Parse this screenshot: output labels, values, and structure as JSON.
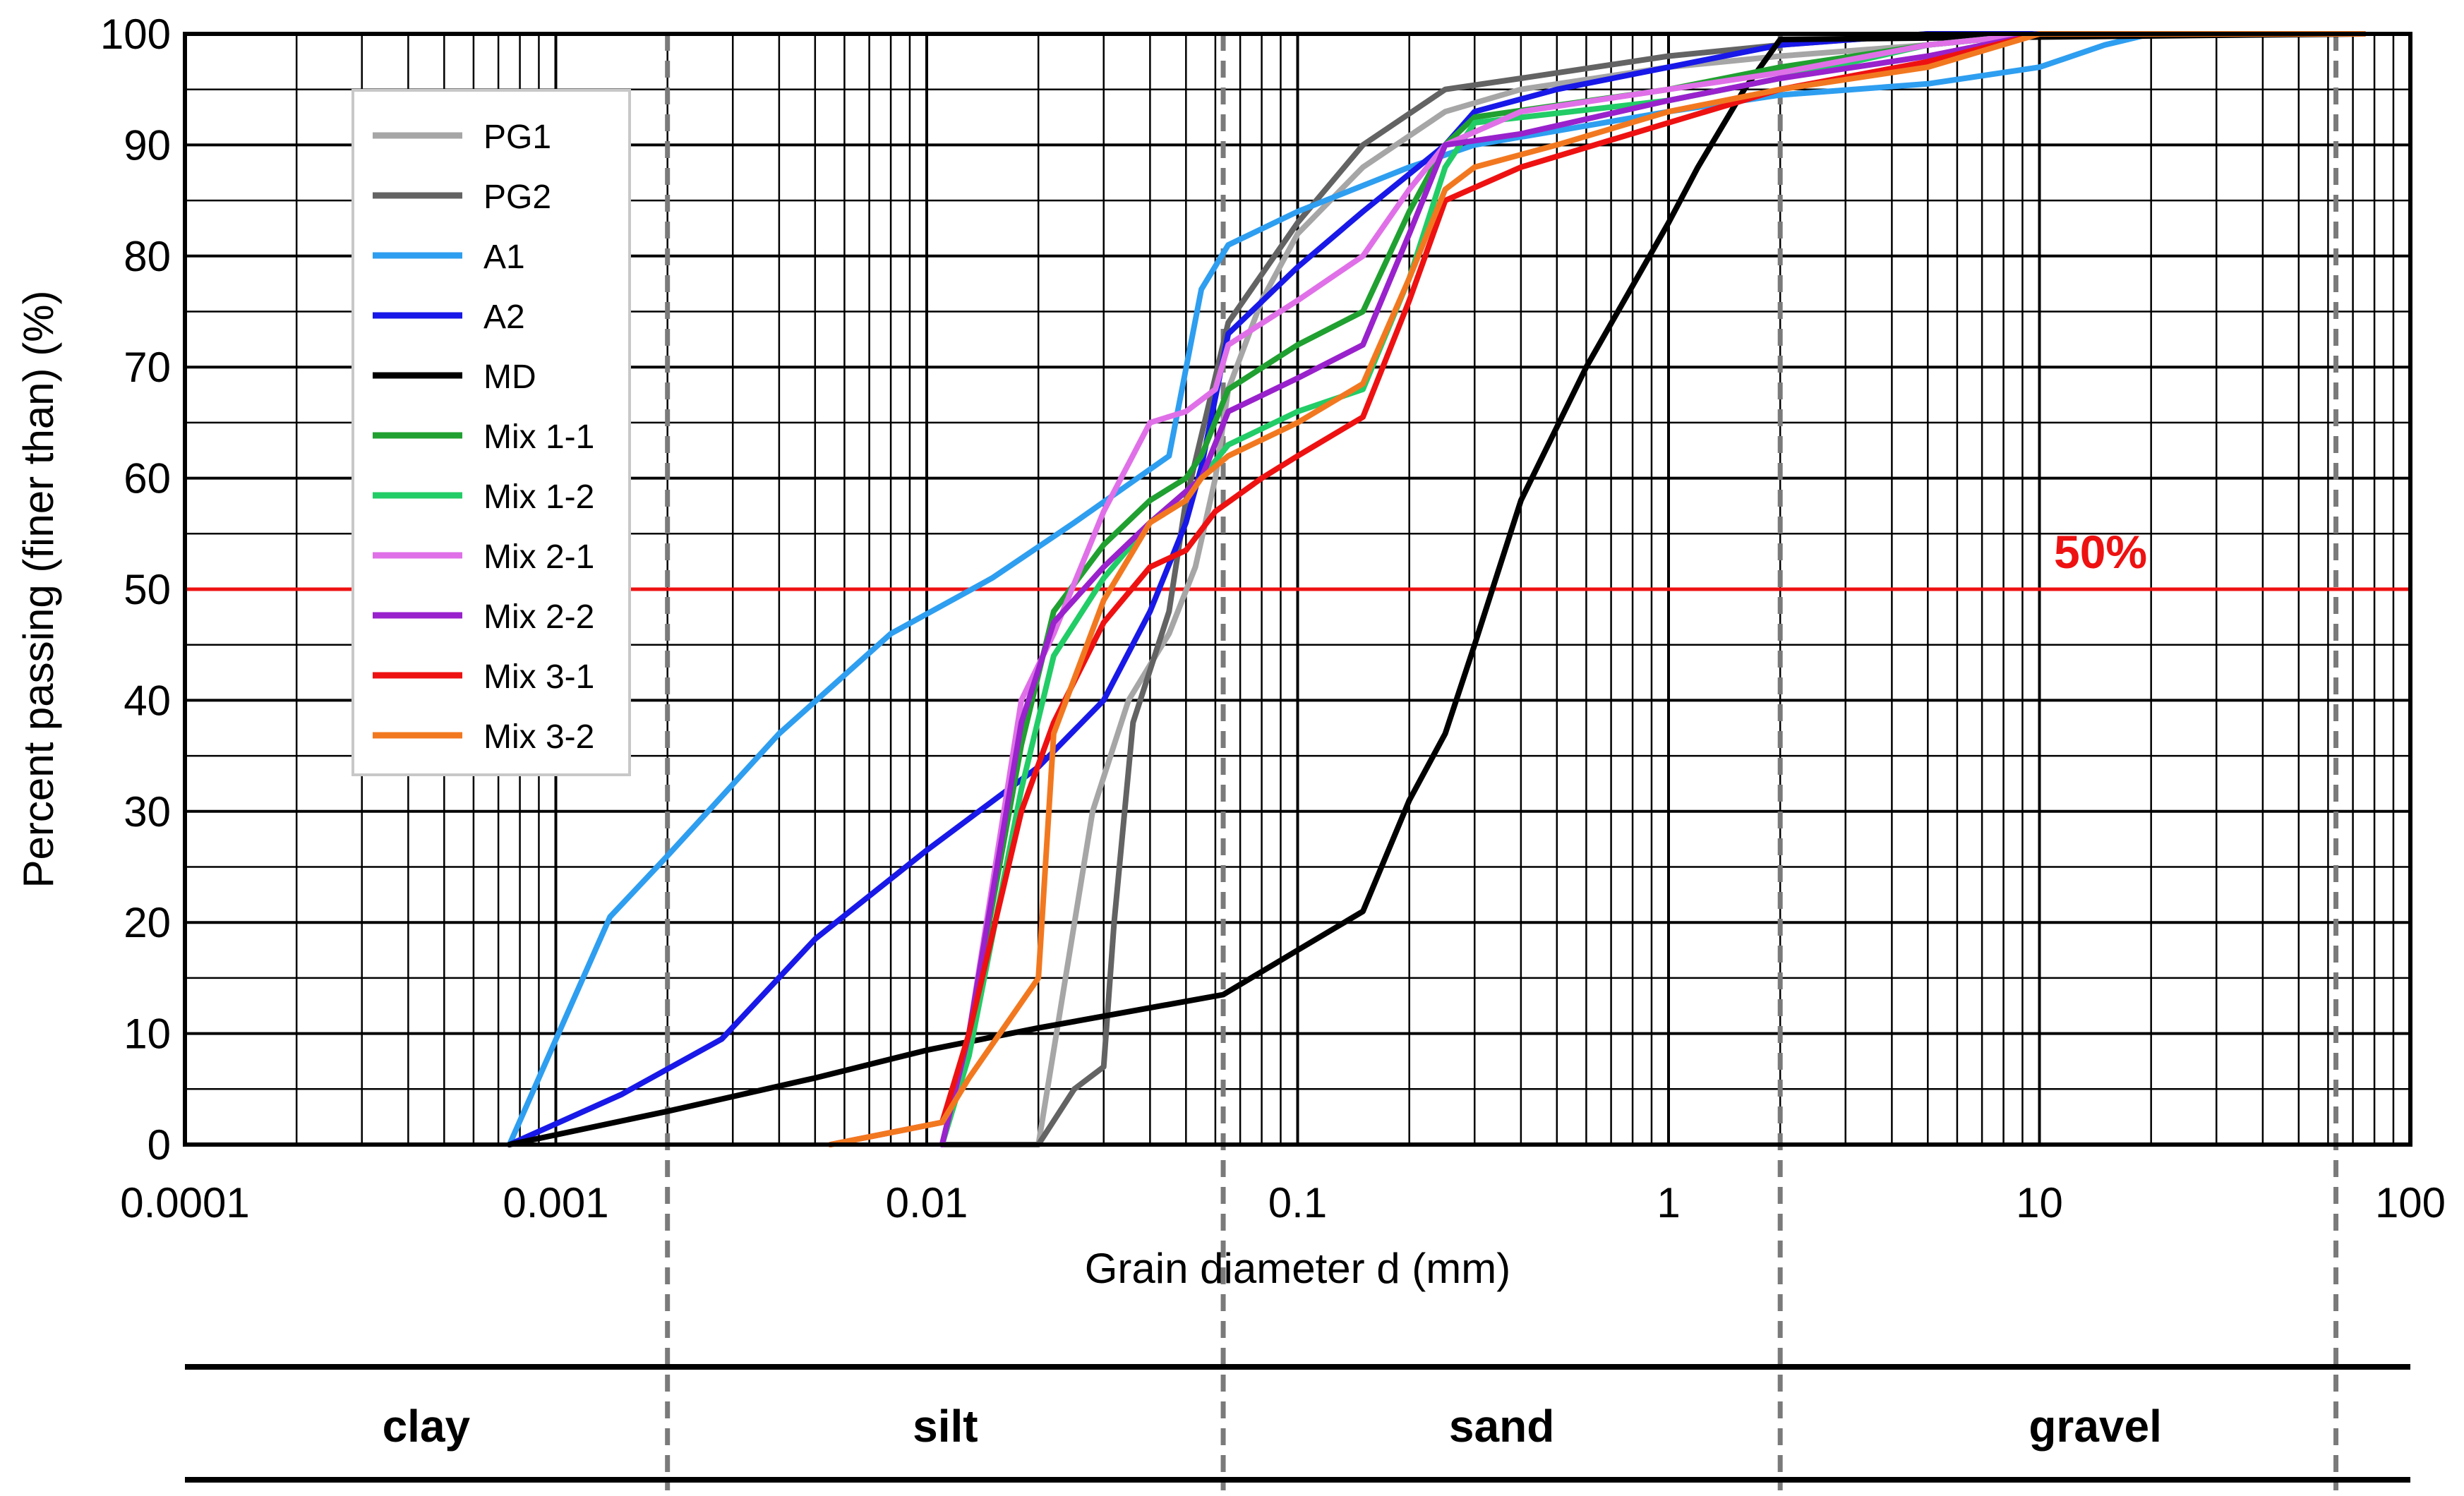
{
  "chart_data": {
    "type": "line",
    "x_scale": "log",
    "xlabel": "Grain diameter d (mm)",
    "ylabel": "Percent passing (finer than) (%)",
    "xlim": [
      0.0001,
      100
    ],
    "ylim": [
      0,
      100
    ],
    "x_tick_labels": [
      {
        "value": 0.0001,
        "label": "0.0001"
      },
      {
        "value": 0.001,
        "label": "0.001"
      },
      {
        "value": 0.01,
        "label": "0.01"
      },
      {
        "value": 0.1,
        "label": "0.1"
      },
      {
        "value": 1,
        "label": "1"
      },
      {
        "value": 10,
        "label": "10"
      },
      {
        "value": 100,
        "label": "100"
      }
    ],
    "y_ticks": [
      0,
      10,
      20,
      30,
      40,
      50,
      60,
      70,
      80,
      90,
      100
    ],
    "grid": true,
    "legend_position": "top-left",
    "reference_line": {
      "y": 50,
      "label": "50%",
      "color": "#ee1111"
    },
    "boundaries": [
      0.002,
      0.063,
      2,
      63
    ],
    "soil_classes": [
      {
        "label": "clay",
        "from": 0.0001,
        "to": 0.002
      },
      {
        "label": "silt",
        "from": 0.002,
        "to": 0.063
      },
      {
        "label": "sand",
        "from": 0.063,
        "to": 2
      },
      {
        "label": "gravel",
        "from": 2,
        "to": 100
      }
    ],
    "series": [
      {
        "name": "PG1",
        "color": "#a6a6a6",
        "points": [
          [
            0.011,
            0
          ],
          [
            0.02,
            0
          ],
          [
            0.028,
            30
          ],
          [
            0.035,
            40
          ],
          [
            0.045,
            46
          ],
          [
            0.053,
            52
          ],
          [
            0.06,
            60
          ],
          [
            0.065,
            68
          ],
          [
            0.08,
            76
          ],
          [
            0.1,
            82
          ],
          [
            0.15,
            88
          ],
          [
            0.25,
            93
          ],
          [
            0.4,
            95
          ],
          [
            1,
            97
          ],
          [
            2,
            98
          ],
          [
            5,
            99
          ],
          [
            10,
            100
          ],
          [
            75,
            100
          ]
        ]
      },
      {
        "name": "PG2",
        "color": "#636363",
        "points": [
          [
            0.011,
            0
          ],
          [
            0.02,
            0
          ],
          [
            0.025,
            5
          ],
          [
            0.03,
            7
          ],
          [
            0.032,
            20
          ],
          [
            0.036,
            38
          ],
          [
            0.045,
            48
          ],
          [
            0.05,
            58
          ],
          [
            0.065,
            74
          ],
          [
            0.1,
            83
          ],
          [
            0.15,
            90
          ],
          [
            0.25,
            95
          ],
          [
            0.4,
            96
          ],
          [
            1,
            98
          ],
          [
            2,
            99
          ],
          [
            5,
            100
          ],
          [
            75,
            100
          ]
        ]
      },
      {
        "name": "A1",
        "color": "#2e9ef0",
        "points": [
          [
            0.00075,
            0
          ],
          [
            0.0014,
            20.5
          ],
          [
            0.002,
            26
          ],
          [
            0.004,
            37
          ],
          [
            0.008,
            46
          ],
          [
            0.015,
            51
          ],
          [
            0.025,
            56
          ],
          [
            0.045,
            62
          ],
          [
            0.055,
            77
          ],
          [
            0.065,
            81
          ],
          [
            0.1,
            84
          ],
          [
            0.2,
            88
          ],
          [
            0.3,
            90
          ],
          [
            1,
            93
          ],
          [
            2,
            94.5
          ],
          [
            5,
            95.5
          ],
          [
            10,
            97
          ],
          [
            15,
            99
          ],
          [
            20,
            100
          ],
          [
            75,
            100
          ]
        ]
      },
      {
        "name": "A2",
        "color": "#1818e8",
        "points": [
          [
            0.00075,
            0
          ],
          [
            0.0015,
            4.5
          ],
          [
            0.0028,
            9.5
          ],
          [
            0.005,
            18.5
          ],
          [
            0.01,
            26.5
          ],
          [
            0.02,
            34
          ],
          [
            0.03,
            40
          ],
          [
            0.04,
            48
          ],
          [
            0.05,
            56
          ],
          [
            0.055,
            61
          ],
          [
            0.065,
            73
          ],
          [
            0.1,
            79
          ],
          [
            0.15,
            84
          ],
          [
            0.25,
            90
          ],
          [
            0.3,
            93
          ],
          [
            0.5,
            95
          ],
          [
            1,
            97
          ],
          [
            2,
            99
          ],
          [
            5,
            100
          ],
          [
            75,
            100
          ]
        ]
      },
      {
        "name": "MD",
        "color": "#000000",
        "points": [
          [
            0.00075,
            0
          ],
          [
            0.002,
            3
          ],
          [
            0.005,
            6
          ],
          [
            0.01,
            8.5
          ],
          [
            0.02,
            10.5
          ],
          [
            0.063,
            13.5
          ],
          [
            0.1,
            17.5
          ],
          [
            0.15,
            21
          ],
          [
            0.2,
            31
          ],
          [
            0.25,
            37
          ],
          [
            0.3,
            45
          ],
          [
            0.4,
            58
          ],
          [
            0.6,
            70
          ],
          [
            1,
            83
          ],
          [
            1.2,
            88
          ],
          [
            1.6,
            95
          ],
          [
            2,
            99.5
          ],
          [
            75,
            100
          ]
        ]
      },
      {
        "name": "Mix 1-1",
        "color": "#20a030",
        "points": [
          [
            0.011,
            0
          ],
          [
            0.013,
            10
          ],
          [
            0.018,
            36
          ],
          [
            0.022,
            48
          ],
          [
            0.03,
            54
          ],
          [
            0.04,
            58
          ],
          [
            0.05,
            60
          ],
          [
            0.055,
            62
          ],
          [
            0.065,
            68
          ],
          [
            0.1,
            72
          ],
          [
            0.15,
            75
          ],
          [
            0.2,
            84
          ],
          [
            0.25,
            90
          ],
          [
            0.3,
            92.5
          ],
          [
            1,
            95
          ],
          [
            2,
            97
          ],
          [
            5,
            99
          ],
          [
            10,
            100
          ],
          [
            75,
            100
          ]
        ]
      },
      {
        "name": "Mix 1-2",
        "color": "#22cc66",
        "points": [
          [
            0.011,
            0
          ],
          [
            0.013,
            8
          ],
          [
            0.018,
            32
          ],
          [
            0.022,
            44
          ],
          [
            0.03,
            51
          ],
          [
            0.04,
            56
          ],
          [
            0.055,
            60
          ],
          [
            0.065,
            63
          ],
          [
            0.1,
            66
          ],
          [
            0.15,
            68
          ],
          [
            0.2,
            78
          ],
          [
            0.25,
            88
          ],
          [
            0.3,
            92
          ],
          [
            1,
            94
          ],
          [
            2,
            96
          ],
          [
            5,
            99
          ],
          [
            10,
            100
          ],
          [
            75,
            100
          ]
        ]
      },
      {
        "name": "Mix 2-1",
        "color": "#e070e8",
        "points": [
          [
            0.011,
            0
          ],
          [
            0.013,
            10
          ],
          [
            0.018,
            40
          ],
          [
            0.022,
            46
          ],
          [
            0.03,
            57
          ],
          [
            0.04,
            65
          ],
          [
            0.05,
            66
          ],
          [
            0.06,
            68
          ],
          [
            0.065,
            72
          ],
          [
            0.1,
            76
          ],
          [
            0.15,
            80
          ],
          [
            0.2,
            86
          ],
          [
            0.25,
            90
          ],
          [
            0.4,
            93
          ],
          [
            1,
            95
          ],
          [
            2,
            96.5
          ],
          [
            5,
            99
          ],
          [
            10,
            100
          ],
          [
            75,
            100
          ]
        ]
      },
      {
        "name": "Mix 2-2",
        "color": "#9922cc",
        "points": [
          [
            0.011,
            0
          ],
          [
            0.013,
            10
          ],
          [
            0.018,
            38
          ],
          [
            0.022,
            47
          ],
          [
            0.03,
            52
          ],
          [
            0.04,
            56
          ],
          [
            0.055,
            60
          ],
          [
            0.065,
            66
          ],
          [
            0.1,
            69
          ],
          [
            0.15,
            72
          ],
          [
            0.2,
            82
          ],
          [
            0.25,
            90
          ],
          [
            0.4,
            91
          ],
          [
            1,
            94
          ],
          [
            2,
            96
          ],
          [
            5,
            98
          ],
          [
            10,
            100
          ],
          [
            75,
            100
          ]
        ]
      },
      {
        "name": "Mix 3-1",
        "color": "#ee1111",
        "points": [
          [
            0.0055,
            0
          ],
          [
            0.011,
            2
          ],
          [
            0.013,
            10
          ],
          [
            0.018,
            30
          ],
          [
            0.022,
            38
          ],
          [
            0.03,
            47
          ],
          [
            0.04,
            52
          ],
          [
            0.05,
            53.5
          ],
          [
            0.06,
            57
          ],
          [
            0.08,
            60
          ],
          [
            0.1,
            62
          ],
          [
            0.15,
            65.5
          ],
          [
            0.2,
            76
          ],
          [
            0.25,
            85
          ],
          [
            0.4,
            88
          ],
          [
            1,
            92
          ],
          [
            2,
            95
          ],
          [
            5,
            97.5
          ],
          [
            10,
            100
          ],
          [
            75,
            100
          ]
        ]
      },
      {
        "name": "Mix 3-2",
        "color": "#f27820",
        "points": [
          [
            0.0055,
            0
          ],
          [
            0.011,
            2
          ],
          [
            0.013,
            6
          ],
          [
            0.02,
            15
          ],
          [
            0.022,
            37
          ],
          [
            0.03,
            49
          ],
          [
            0.04,
            56
          ],
          [
            0.05,
            58
          ],
          [
            0.055,
            60
          ],
          [
            0.065,
            62
          ],
          [
            0.1,
            65
          ],
          [
            0.15,
            68.5
          ],
          [
            0.2,
            78
          ],
          [
            0.25,
            86
          ],
          [
            0.3,
            88
          ],
          [
            0.5,
            90
          ],
          [
            1,
            93
          ],
          [
            2,
            95
          ],
          [
            5,
            97
          ],
          [
            10,
            100
          ],
          [
            75,
            100
          ]
        ]
      }
    ]
  }
}
